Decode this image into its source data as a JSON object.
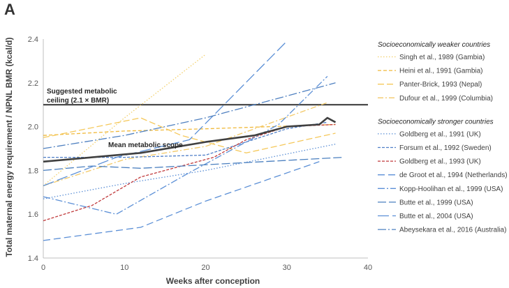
{
  "panel_label": "A",
  "chart_data": {
    "type": "line",
    "title": "",
    "xlabel": "Weeks after conception",
    "ylabel": "Total maternal energy requirement / NPNL BMR (kcal/d)",
    "xlim": [
      0,
      40
    ],
    "ylim": [
      1.4,
      2.4
    ],
    "xticks": [
      0,
      10,
      20,
      30,
      40
    ],
    "yticks": [
      1.4,
      1.6,
      1.8,
      2.0,
      2.2,
      2.4
    ],
    "grid": false,
    "legend_position": "right",
    "reference_line": {
      "y": 2.1,
      "label_line1": "Suggested metabolic",
      "label_line2": "ceiling (2.1 × BMR)",
      "color": "#404040"
    },
    "mean_annotation": "Mean metabolic scope",
    "groups": [
      {
        "heading": "Socioeconomically weaker countries"
      },
      {
        "heading": "Socioeconomically stronger countries"
      }
    ],
    "series": [
      {
        "name": "Singh et al., 1989 (Gambia)",
        "group": 0,
        "color": "#f2d06b",
        "dash": "1.5,2.5",
        "width": 1.3,
        "points": [
          [
            0,
            1.73
          ],
          [
            10,
            2.04
          ],
          [
            20,
            2.33
          ]
        ]
      },
      {
        "name": "Heini et al., 1991 (Gambia)",
        "group": 0,
        "color": "#f0b93a",
        "dash": "5,3",
        "width": 1.3,
        "points": [
          [
            0,
            1.96
          ],
          [
            10,
            1.98
          ],
          [
            20,
            1.99
          ],
          [
            36,
            2.01
          ]
        ]
      },
      {
        "name": "Panter-Brick, 1993 (Nepal)",
        "group": 0,
        "color": "#f5c85a",
        "dash": "9,4",
        "width": 1.3,
        "points": [
          [
            0,
            1.95
          ],
          [
            12,
            2.04
          ],
          [
            17,
            1.96
          ],
          [
            25,
            1.88
          ],
          [
            36,
            1.97
          ]
        ]
      },
      {
        "name": "Dufour et al., 1999 (Columbia)",
        "group": 0,
        "color": "#f3c968",
        "dash": "8,3,2,3",
        "width": 1.3,
        "points": [
          [
            0,
            1.73
          ],
          [
            10,
            1.85
          ],
          [
            20,
            1.91
          ],
          [
            35,
            2.11
          ]
        ]
      },
      {
        "name": "Goldberg et al., 1991 (UK)",
        "group": 1,
        "color": "#5b8fd6",
        "dash": "1.5,2.5",
        "width": 1.3,
        "points": [
          [
            0,
            1.67
          ],
          [
            10,
            1.74
          ],
          [
            20,
            1.8
          ],
          [
            36,
            1.92
          ]
        ]
      },
      {
        "name": "Forsum et al., 1992 (Sweden)",
        "group": 1,
        "color": "#4f7fc8",
        "dash": "4,2",
        "width": 1.3,
        "points": [
          [
            0,
            1.86
          ],
          [
            10,
            1.86
          ],
          [
            20,
            1.87
          ],
          [
            30,
            1.99
          ],
          [
            35,
            2.02
          ]
        ]
      },
      {
        "name": "Goldberg et al., 1993 (UK)",
        "group": 1,
        "color": "#c0393b",
        "dash": "4,2",
        "width": 1.3,
        "points": [
          [
            0,
            1.57
          ],
          [
            6,
            1.64
          ],
          [
            12,
            1.77
          ],
          [
            21,
            1.86
          ],
          [
            25,
            1.94
          ],
          [
            30,
            2.0
          ],
          [
            36,
            2.01
          ]
        ]
      },
      {
        "name": "de Groot et al., 1994 (Netherlands)",
        "group": 1,
        "color": "#5b8fd6",
        "dash": "10,5",
        "width": 1.3,
        "points": [
          [
            0,
            1.48
          ],
          [
            12,
            1.54
          ],
          [
            20,
            1.66
          ],
          [
            34,
            1.84
          ]
        ]
      },
      {
        "name": "Kopp-Hoolihan et al., 1999 (USA)",
        "group": 1,
        "color": "#5b8fd6",
        "dash": "10,3,2,3",
        "width": 1.3,
        "points": [
          [
            0,
            1.68
          ],
          [
            9,
            1.6
          ],
          [
            18,
            1.79
          ],
          [
            29,
            2.01
          ],
          [
            35,
            2.23
          ]
        ]
      },
      {
        "name": "Butte et al., 1999 (USA)",
        "group": 1,
        "color": "#4a7fbf",
        "dash": "12,4",
        "width": 1.3,
        "points": [
          [
            0,
            1.8
          ],
          [
            6,
            1.82
          ],
          [
            12,
            1.81
          ],
          [
            37,
            1.86
          ]
        ]
      },
      {
        "name": "Butte et al., 2004 (USA)",
        "group": 1,
        "color": "#5b8fd6",
        "dash": "16,5",
        "width": 1.3,
        "points": [
          [
            0,
            1.73
          ],
          [
            9,
            1.86
          ],
          [
            18,
            1.94
          ],
          [
            30,
            2.39
          ]
        ]
      },
      {
        "name": "Abeysekara et al., 2016 (Australia)",
        "group": 1,
        "color": "#4f80c0",
        "dash": "12,3,2,3",
        "width": 1.3,
        "points": [
          [
            0,
            1.9
          ],
          [
            10,
            1.96
          ],
          [
            20,
            2.04
          ],
          [
            36,
            2.2
          ]
        ]
      },
      {
        "name": "Mean metabolic scope",
        "group": null,
        "color": "#404040",
        "dash": "",
        "width": 2.6,
        "points": [
          [
            0,
            1.84
          ],
          [
            6,
            1.86
          ],
          [
            12,
            1.88
          ],
          [
            20,
            1.93
          ],
          [
            26,
            1.96
          ],
          [
            30,
            2.0
          ],
          [
            34,
            2.01
          ],
          [
            35,
            2.04
          ],
          [
            36,
            2.02
          ]
        ]
      }
    ]
  }
}
